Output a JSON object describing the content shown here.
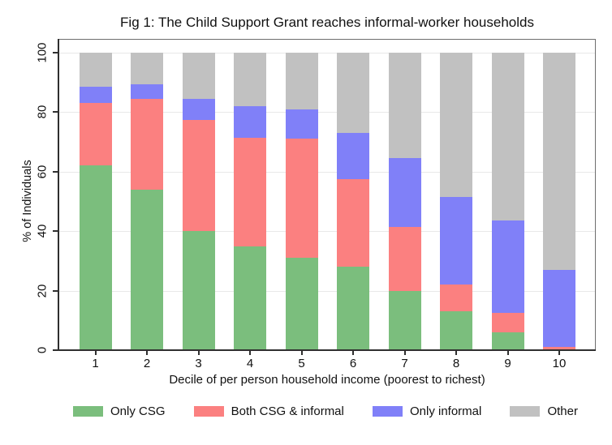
{
  "figure": {
    "title": "Fig 1: The Child Support Grant reaches informal-worker households"
  },
  "chart_data": {
    "type": "bar",
    "stacked": true,
    "title": "Fig 1: The Child Support Grant reaches informal-worker households",
    "xlabel": "Decile of per person household income (poorest to richest)",
    "ylabel": "% of Individuals",
    "categories": [
      "1",
      "2",
      "3",
      "4",
      "5",
      "6",
      "7",
      "8",
      "9",
      "10"
    ],
    "series": [
      {
        "name": "Only CSG",
        "color": "#7bbe7d",
        "values": [
          62,
          54,
          40,
          35,
          31,
          28,
          20,
          13,
          6,
          0.3
        ]
      },
      {
        "name": "Both CSG & informal",
        "color": "#fb8080",
        "values": [
          21,
          30.5,
          37.5,
          36.5,
          40,
          29.5,
          21.5,
          9,
          6.5,
          0.7
        ]
      },
      {
        "name": "Only informal",
        "color": "#8080f8",
        "values": [
          5.5,
          5,
          7,
          10.5,
          10,
          15.5,
          23,
          29.5,
          31,
          26
        ]
      },
      {
        "name": "Other",
        "color": "#c1c1c1",
        "values": [
          11.5,
          10.5,
          15.5,
          18,
          19,
          27,
          35.5,
          48.5,
          56.5,
          73
        ]
      }
    ],
    "ylim": [
      0,
      100
    ],
    "yticks": [
      0,
      20,
      40,
      60,
      80,
      100
    ],
    "grid": true,
    "legend_position": "bottom"
  }
}
